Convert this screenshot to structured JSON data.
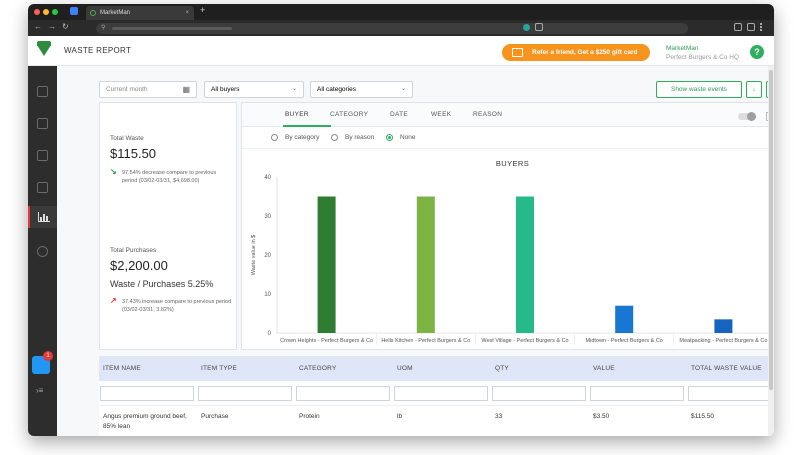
{
  "browser": {
    "tab_title": "MarketMan",
    "tab_close": "×",
    "new_tab": "+",
    "nav": {
      "back": "←",
      "forward": "→",
      "reload": "↻"
    },
    "url_lock": "⚲"
  },
  "header": {
    "title": "WASTE REPORT",
    "refer_label": "Refer a friend, Get a $250 gift card",
    "user_name": "MarketMan",
    "user_company": "Perfect Burgers & Co HQ",
    "help": "?"
  },
  "sidebar": {
    "promo_badge": "1",
    "expand_icon": "›≡"
  },
  "filters": {
    "period": "Current month",
    "buyers": "All buyers",
    "categories": "All categories",
    "show_events": "Show waste events",
    "download_icon": "↓",
    "email_icon": "✉",
    "caret": "⌄",
    "calendar": "▦"
  },
  "summary": {
    "total_waste_label": "Total Waste",
    "total_waste_value": "$115.50",
    "waste_change_note": "97.54% decrease compare to previous period (03/02-03/31, $4,698.00)",
    "total_purchases_label": "Total Purchases",
    "total_purchases_value": "$2,200.00",
    "ratio": "Waste / Purchases 5.25%",
    "purchase_change_note": "37.43% increase compare to previous period (03/02-03/31, 3.82%)",
    "down_arrow": "↘",
    "up_arrow": "↗",
    "down_color": "#2e9b5a",
    "up_color": "#e53935"
  },
  "chart_tabs": [
    "BUYER",
    "CATEGORY",
    "DATE",
    "WEEK",
    "REASON"
  ],
  "grouping": {
    "by_category": "By category",
    "by_reason": "By reason",
    "none": "None",
    "selected": "None"
  },
  "chart_data": {
    "type": "bar",
    "title": "BUYERS",
    "ylabel": "Waste value in $",
    "xlabel": "",
    "ylim": [
      0,
      40
    ],
    "yticks": [
      0,
      10,
      20,
      30,
      40
    ],
    "categories": [
      "Crown Heights - Perfect Burgers & Co",
      "Hells Kitchen - Perfect Burgers & Co",
      "West Village - Perfect Burgers & Co",
      "Midtown - Perfect Burgers & Co",
      "Meatpacking - Perfect Burgers & Co"
    ],
    "values": [
      35,
      35,
      35,
      7,
      3.5
    ],
    "colors": [
      "#2e7d32",
      "#7cb342",
      "#26b98a",
      "#1976d2",
      "#1565c0"
    ],
    "grid": false
  },
  "table": {
    "columns": [
      "ITEM NAME",
      "ITEM TYPE",
      "CATEGORY",
      "UOM",
      "QTY",
      "VALUE",
      "TOTAL WASTE VALUE"
    ],
    "rows": [
      [
        "Angus premium ground beef, 85% lean",
        "Purchase",
        "Protein",
        "lb",
        "33",
        "$3.50",
        "$115.50"
      ]
    ]
  }
}
